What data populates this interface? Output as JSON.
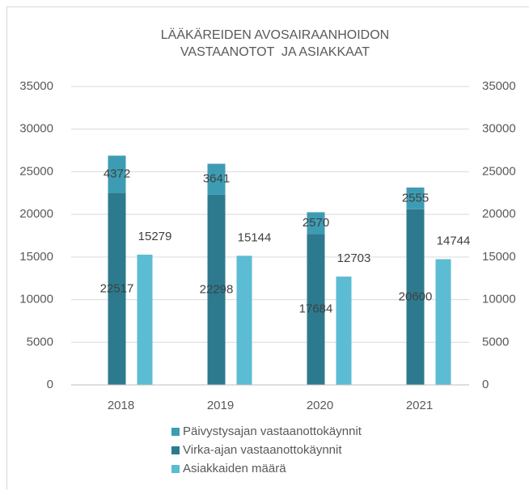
{
  "chart_data": {
    "type": "bar",
    "title": [
      "LÄÄKÄREIDEN AVOSAIRAANHOIDON",
      "VASTAANOTOT  JA ASIAKKAAT"
    ],
    "categories": [
      "2018",
      "2019",
      "2020",
      "2021"
    ],
    "series": [
      {
        "name": "Päivystysajan vastaanottokäynnit",
        "color": "#3d9cb4",
        "values": [
          4372,
          3641,
          2570,
          2555
        ]
      },
      {
        "name": "Virka-ajan vastaanottokäynnit",
        "color": "#2d7a8f",
        "values": [
          22517,
          22298,
          17684,
          20600
        ]
      },
      {
        "name": "Asiakkaiden määrä",
        "color": "#5bbcd3",
        "values": [
          15279,
          15144,
          12703,
          14744
        ],
        "axis": "y2"
      }
    ],
    "ylim": [
      0,
      35000
    ],
    "yticks": [
      0,
      5000,
      10000,
      15000,
      20000,
      25000,
      30000,
      35000
    ],
    "y2lim": [
      0,
      35000
    ],
    "y2ticks": [
      0,
      5000,
      10000,
      15000,
      20000,
      25000,
      30000,
      35000
    ],
    "grid": true,
    "legend": "bottom"
  }
}
